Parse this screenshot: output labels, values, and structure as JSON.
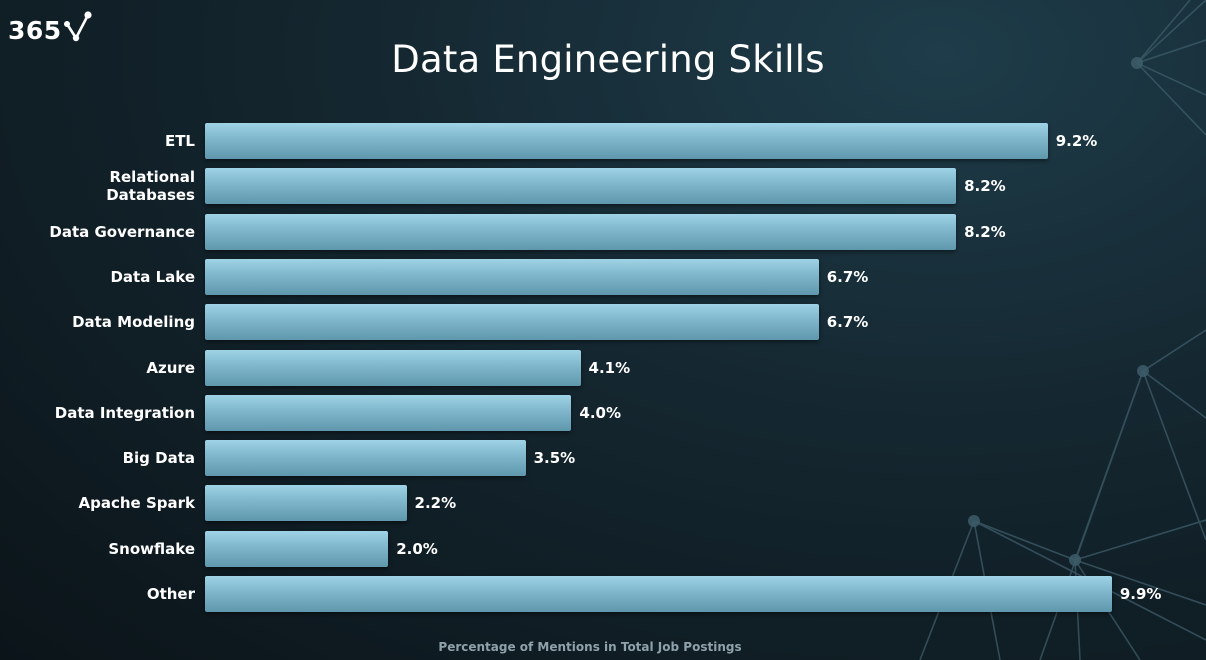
{
  "brand": {
    "logo_text": "365",
    "logo_icon": "check-network-icon"
  },
  "colors": {
    "background": "#14262f",
    "bar": "#7fb6cb",
    "text": "#ffffff",
    "axis_label": "#8fa1ab"
  },
  "chart_data": {
    "type": "bar",
    "orientation": "horizontal",
    "title": "Data Engineering Skills",
    "xlabel": "Percentage of Mentions in Total Job Postings",
    "ylabel": "",
    "categories": [
      "ETL",
      "Relational Databases",
      "Data Governance",
      "Data Lake",
      "Data Modeling",
      "Azure",
      "Data Integration",
      "Big Data",
      "Apache Spark",
      "Snowflake",
      "Other"
    ],
    "values": [
      9.2,
      8.2,
      8.2,
      6.7,
      6.7,
      4.1,
      4.0,
      3.5,
      2.2,
      2.0,
      9.9
    ],
    "value_labels": [
      "9.2%",
      "8.2%",
      "8.2%",
      "6.7%",
      "6.7%",
      "4.1%",
      "4.0%",
      "3.5%",
      "2.2%",
      "2.0%",
      "9.9%"
    ],
    "unit": "%",
    "grid": false,
    "legend": "none"
  }
}
